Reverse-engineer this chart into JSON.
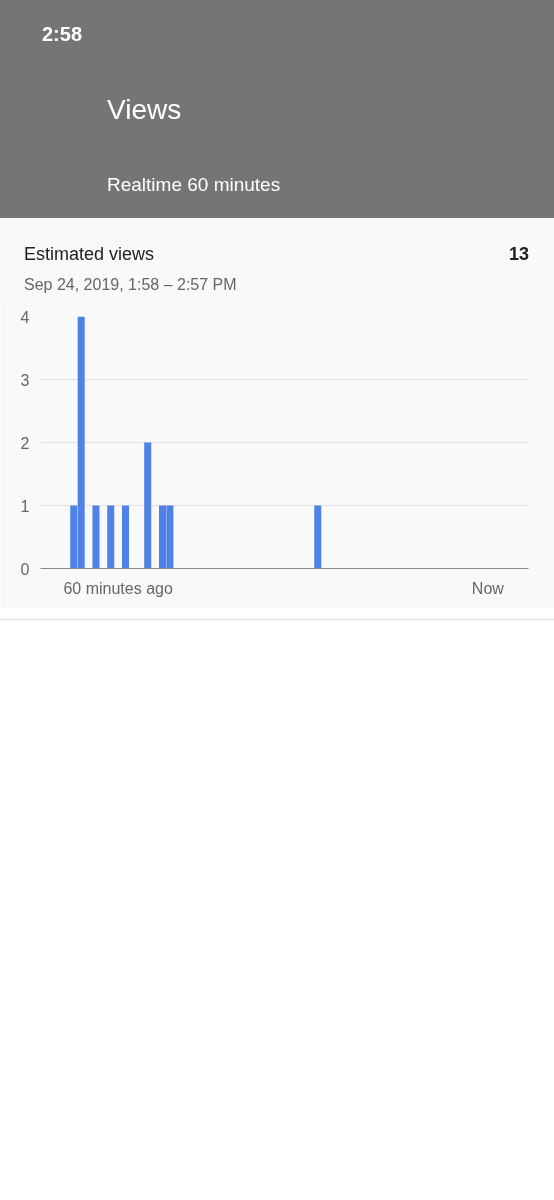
{
  "chart_data": {
    "type": "bar",
    "title": "Estimated views",
    "subtitle": "Sep 24, 2019, 1:58 – 2:57 PM",
    "annotations": [
      "2:58",
      "Views",
      "Realtime 60 minutes",
      "13"
    ],
    "categories": [
      null,
      null,
      null,
      null,
      null,
      null,
      null,
      null,
      null,
      null,
      "60 minutes ago",
      null,
      null,
      null,
      null,
      null,
      null,
      null,
      null,
      null,
      null,
      null,
      null,
      null,
      null,
      null,
      null,
      null,
      null,
      null,
      null,
      null,
      null,
      null,
      null,
      null,
      null,
      null,
      null,
      null,
      null,
      null,
      null,
      null,
      null,
      null,
      null,
      null,
      null,
      null,
      null,
      null,
      null,
      null,
      null,
      null,
      null,
      null,
      null,
      null,
      "Now",
      null,
      null,
      null,
      null,
      null
    ],
    "series": [
      {
        "color": "#4f81e6",
        "values": [
          0,
          0,
          0,
          0,
          1,
          4,
          0,
          1,
          0,
          1,
          0,
          1,
          0,
          0,
          2,
          0,
          1,
          1,
          0,
          0,
          0,
          0,
          0,
          0,
          0,
          0,
          0,
          0,
          0,
          0,
          0,
          0,
          0,
          0,
          0,
          0,
          0,
          1,
          0,
          0,
          0,
          0,
          0,
          0,
          0,
          0,
          0,
          0,
          0,
          0,
          0,
          0,
          0,
          0,
          0,
          0,
          0,
          0,
          0,
          0,
          0,
          0,
          0,
          0,
          0,
          0
        ]
      }
    ],
    "ylim": [
      0,
      4
    ],
    "yticks": [
      0,
      1,
      2,
      3,
      4
    ],
    "grid": "y"
  }
}
